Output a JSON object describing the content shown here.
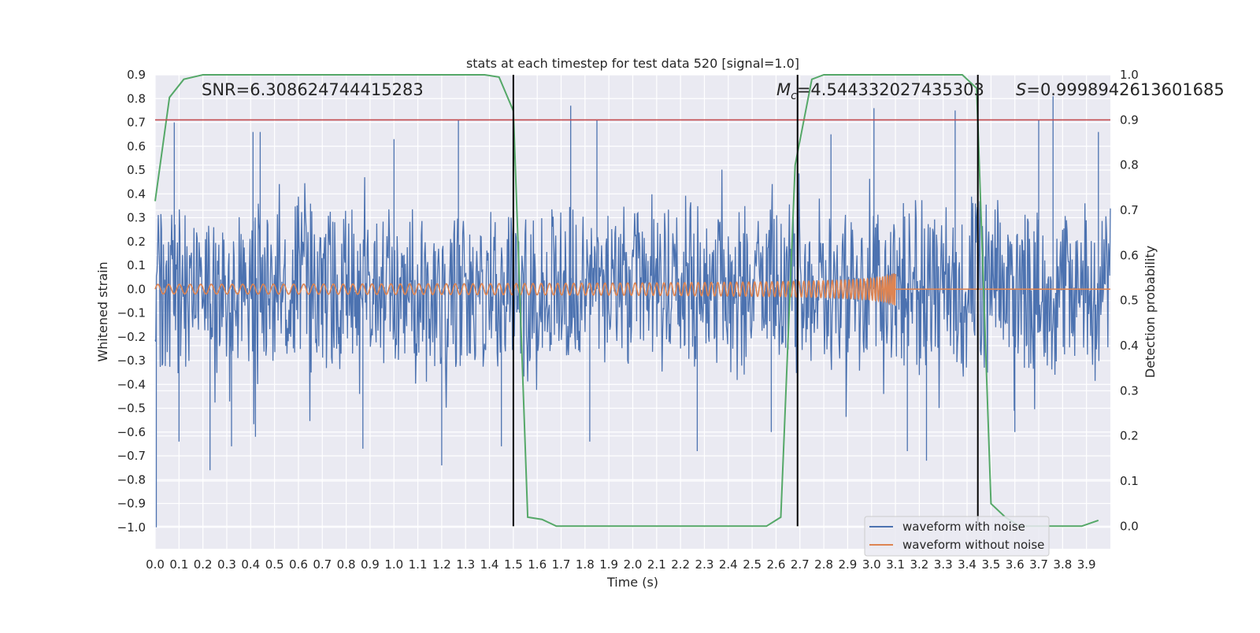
{
  "chart_data": {
    "type": "line",
    "title": "stats at each timestep for test data 520 [signal=1.0]",
    "xlabel": "Time (s)",
    "ylabel_left": "Whitened strain",
    "ylabel_right": "Detection probability",
    "xlim": [
      0.0,
      4.0
    ],
    "ylim_left": [
      -1.09,
      0.9
    ],
    "ylim_right": [
      -0.05,
      1.0
    ],
    "x_ticks": [
      "0.0",
      "0.1",
      "0.2",
      "0.3",
      "0.4",
      "0.5",
      "0.6",
      "0.7",
      "0.8",
      "0.9",
      "1.0",
      "1.1",
      "1.2",
      "1.3",
      "1.4",
      "1.5",
      "1.6",
      "1.7",
      "1.8",
      "1.9",
      "2.0",
      "2.1",
      "2.2",
      "2.3",
      "2.4",
      "2.5",
      "2.6",
      "2.7",
      "2.8",
      "2.9",
      "3.0",
      "3.1",
      "3.2",
      "3.3",
      "3.4",
      "3.5",
      "3.6",
      "3.7",
      "3.8",
      "3.9"
    ],
    "y_ticks_left": [
      "0.9",
      "0.8",
      "0.7",
      "0.6",
      "0.5",
      "0.4",
      "0.3",
      "0.2",
      "0.1",
      "0.0",
      "−0.1",
      "−0.2",
      "−0.3",
      "−0.4",
      "−0.5",
      "−0.6",
      "−0.7",
      "−0.8",
      "−0.9",
      "−1.0"
    ],
    "y_ticks_right": [
      "1.0",
      "0.9",
      "0.8",
      "0.7",
      "0.6",
      "0.5",
      "0.4",
      "0.3",
      "0.2",
      "0.1",
      "0.0"
    ],
    "annotations": {
      "snr": "SNR=6.308624744415283",
      "mc_symbol": "M",
      "mc_sub": "c",
      "mc_value": "=4.544332027435303",
      "s_symbol": "S",
      "s_value": "=0.9998942613601685"
    },
    "threshold_probability": 0.9,
    "vertical_markers": [
      1.5,
      2.69,
      3.445
    ],
    "legend": {
      "placement": "lower right",
      "entries": [
        "waveform with noise",
        "waveform without noise"
      ]
    },
    "colors": {
      "noise": "#4c72b0",
      "clean": "#dd8452",
      "probability": "#55a868",
      "threshold": "#c44e52",
      "markers": "#000000",
      "background": "#eaeaf2",
      "grid": "#ffffff"
    },
    "series": [
      {
        "name": "waveform with noise",
        "axis": "left",
        "kind": "noise",
        "x_start": 0.0,
        "x_end": 4.0,
        "envelope_peak": [
          0.3,
          0.28,
          0.28,
          0.28,
          0.28,
          0.3,
          0.3,
          0.28,
          0.28,
          0.28,
          0.28,
          0.28,
          0.28,
          0.28,
          0.28,
          0.28,
          0.28,
          0.28,
          0.28,
          0.28,
          0.28,
          0.28,
          0.28,
          0.28,
          0.28,
          0.28,
          0.28,
          0.28,
          0.3,
          0.3,
          0.3,
          0.3,
          0.3,
          0.3,
          0.3,
          0.28,
          0.28,
          0.28,
          0.28,
          0.28
        ],
        "spikes": [
          [
            0.005,
            -1.0
          ],
          [
            0.08,
            0.7
          ],
          [
            0.1,
            -0.64
          ],
          [
            0.23,
            -0.76
          ],
          [
            0.32,
            -0.66
          ],
          [
            0.41,
            0.66
          ],
          [
            0.44,
            0.66
          ],
          [
            0.42,
            -0.62
          ],
          [
            0.87,
            -0.67
          ],
          [
            1.0,
            0.63
          ],
          [
            1.2,
            -0.74
          ],
          [
            1.27,
            0.71
          ],
          [
            1.45,
            -0.66
          ],
          [
            1.74,
            0.77
          ],
          [
            1.85,
            0.71
          ],
          [
            1.82,
            -0.64
          ],
          [
            2.27,
            -0.68
          ],
          [
            2.58,
            -0.6
          ],
          [
            2.83,
            0.65
          ],
          [
            3.01,
            0.76
          ],
          [
            3.15,
            -0.68
          ],
          [
            3.23,
            -0.72
          ],
          [
            3.35,
            0.75
          ],
          [
            3.7,
            0.71
          ],
          [
            3.76,
            0.81
          ],
          [
            3.6,
            -0.6
          ],
          [
            3.95,
            0.66
          ]
        ]
      },
      {
        "name": "waveform without noise",
        "axis": "left",
        "kind": "chirp",
        "x_start": 0.0,
        "x_end": 3.1,
        "amplitude_start": 0.02,
        "amplitude_end": 0.12,
        "after_merger_value": 0.0
      },
      {
        "name": "Detection probability",
        "axis": "right",
        "kind": "line",
        "x": [
          0.0,
          0.06,
          0.12,
          0.2,
          0.4,
          0.8,
          1.2,
          1.38,
          1.44,
          1.5,
          1.56,
          1.62,
          1.68,
          1.8,
          2.2,
          2.5,
          2.56,
          2.62,
          2.68,
          2.75,
          2.8,
          3.2,
          3.38,
          3.44,
          3.5,
          3.56,
          3.62,
          3.8,
          3.88,
          3.95
        ],
        "y": [
          0.72,
          0.95,
          0.99,
          1.0,
          1.0,
          1.0,
          1.0,
          1.0,
          0.995,
          0.92,
          0.02,
          0.015,
          0.0,
          0.0,
          0.0,
          0.0,
          0.0,
          0.02,
          0.8,
          0.99,
          1.0,
          1.0,
          1.0,
          0.97,
          0.05,
          0.02,
          0.0,
          0.0,
          0.0,
          0.013
        ]
      }
    ]
  }
}
